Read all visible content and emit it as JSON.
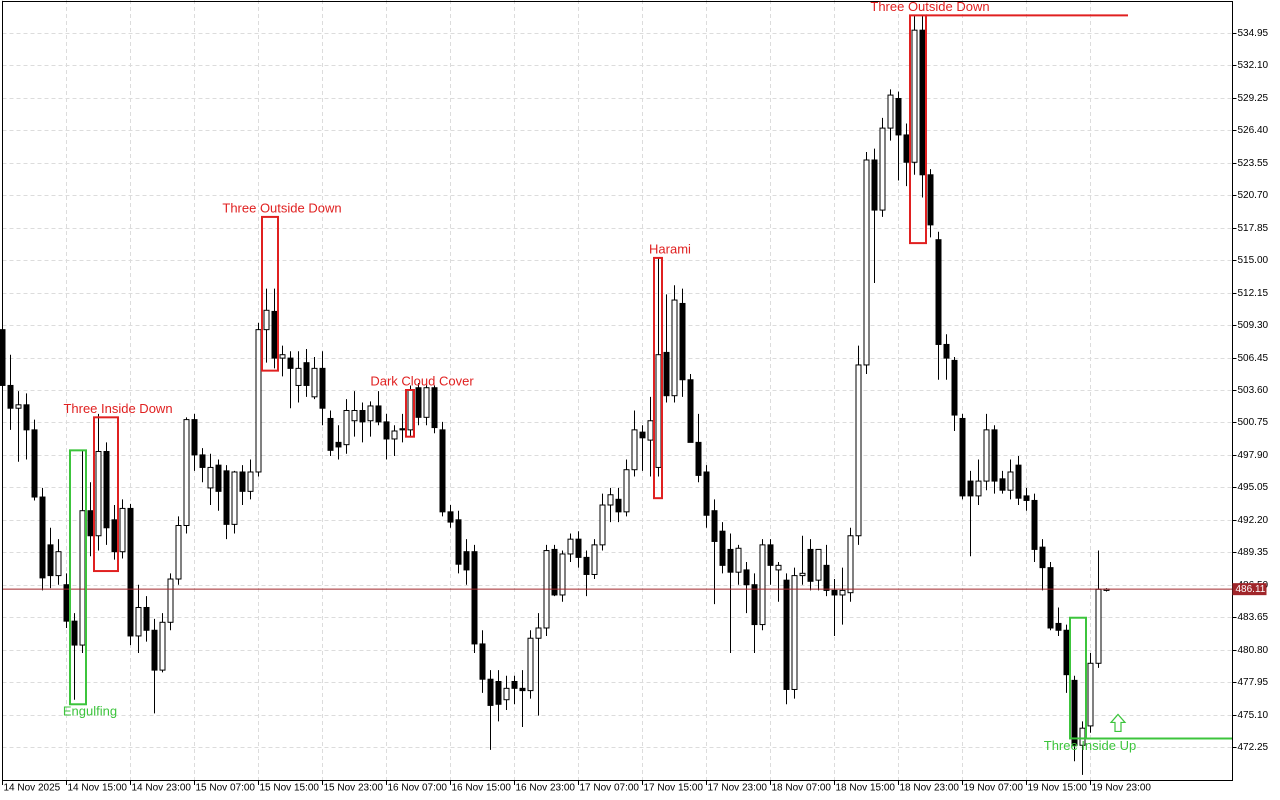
{
  "chart_data": {
    "type": "candlestick",
    "categories": [
      "14 Nov 2025",
      null,
      null,
      null,
      null,
      null,
      null,
      null,
      "14 Nov 15:00",
      null,
      null,
      null,
      null,
      null,
      null,
      null,
      "14 Nov 23:00",
      null,
      null,
      null,
      null,
      null,
      null,
      null,
      "15 Nov 07:00",
      null,
      null,
      null,
      null,
      null,
      null,
      null,
      "15 Nov 15:00",
      null,
      null,
      null,
      null,
      null,
      null,
      null,
      "15 Nov 23:00",
      null,
      null,
      null,
      null,
      null,
      null,
      null,
      "16 Nov 07:00",
      null,
      null,
      null,
      null,
      null,
      null,
      null,
      "16 Nov 15:00",
      null,
      null,
      null,
      null,
      null,
      null,
      null,
      "16 Nov 23:00",
      null,
      null,
      null,
      null,
      null,
      null,
      null,
      "17 Nov 07:00",
      null,
      null,
      null,
      null,
      null,
      null,
      null,
      "17 Nov 15:00",
      null,
      null,
      null,
      null,
      null,
      null,
      null,
      "17 Nov 23:00",
      null,
      null,
      null,
      null,
      null,
      null,
      null,
      "18 Nov 07:00",
      null,
      null,
      null,
      null,
      null,
      null,
      null,
      "18 Nov 15:00",
      null,
      null,
      null,
      null,
      null,
      null,
      null,
      "18 Nov 23:00",
      null,
      null,
      null,
      null,
      null,
      null,
      null,
      "19 Nov 07:00",
      null,
      null,
      null,
      null,
      null,
      null,
      null,
      "19 Nov 15:00",
      null,
      null,
      null,
      null,
      null,
      null,
      null,
      "19 Nov 23:00",
      null,
      null
    ],
    "candles": [
      [
        508.9,
        510.8,
        502.7,
        504.0
      ],
      [
        504.0,
        506.7,
        500.1,
        502.0
      ],
      [
        502.0,
        503.5,
        497.3,
        502.3
      ],
      [
        502.3,
        503.3,
        497.5,
        500.1
      ],
      [
        500.1,
        501.0,
        493.9,
        494.2
      ],
      [
        494.2,
        495.0,
        486.0,
        487.1
      ],
      [
        490.0,
        491.5,
        486.2,
        487.3
      ],
      [
        487.3,
        490.5,
        486.5,
        489.4
      ],
      [
        486.5,
        487.5,
        482.7,
        483.3
      ],
      [
        483.3,
        484.0,
        476.4,
        481.2
      ],
      [
        481.2,
        498.3,
        480.5,
        493.0
      ],
      [
        493.0,
        495.5,
        489.0,
        490.8
      ],
      [
        490.8,
        501.5,
        489.5,
        498.2
      ],
      [
        498.2,
        499.0,
        490.0,
        491.5
      ],
      [
        492.2,
        493.5,
        488.7,
        489.4
      ],
      [
        489.4,
        494.0,
        488.8,
        493.2
      ],
      [
        493.2,
        493.6,
        481.2,
        482.0
      ],
      [
        482.0,
        486.5,
        480.5,
        484.5
      ],
      [
        484.5,
        485.5,
        481.5,
        482.5
      ],
      [
        482.5,
        483.5,
        475.2,
        479.0
      ],
      [
        479.0,
        484.0,
        478.8,
        483.2
      ],
      [
        483.2,
        487.5,
        482.5,
        487.0
      ],
      [
        487.0,
        492.5,
        486.5,
        491.7
      ],
      [
        491.7,
        501.2,
        491.0,
        501.0
      ],
      [
        501.0,
        501.5,
        496.5,
        497.9
      ],
      [
        497.9,
        498.5,
        495.5,
        496.8
      ],
      [
        495.0,
        498.0,
        493.5,
        496.8
      ],
      [
        497.0,
        497.5,
        493.0,
        494.7
      ],
      [
        496.5,
        497.0,
        490.5,
        491.8
      ],
      [
        491.8,
        496.5,
        491.0,
        496.4
      ],
      [
        496.4,
        497.0,
        493.5,
        494.7
      ],
      [
        494.7,
        497.5,
        494.0,
        496.4
      ],
      [
        496.4,
        509.5,
        496.0,
        508.9
      ],
      [
        508.9,
        512.5,
        506.0,
        510.6
      ],
      [
        510.5,
        512.5,
        505.5,
        506.4
      ],
      [
        506.4,
        507.5,
        504.8,
        506.7
      ],
      [
        506.4,
        507.0,
        502.0,
        505.5
      ],
      [
        504.0,
        507.0,
        502.5,
        505.5
      ],
      [
        506.0,
        507.2,
        503.0,
        504.0
      ],
      [
        503.0,
        506.5,
        502.8,
        505.5
      ],
      [
        505.5,
        507.0,
        500.5,
        502.0
      ],
      [
        501.1,
        501.8,
        497.8,
        498.3
      ],
      [
        499.0,
        500.5,
        497.5,
        498.6
      ],
      [
        498.8,
        502.8,
        498.0,
        501.8
      ],
      [
        500.9,
        503.5,
        499.5,
        501.8
      ],
      [
        501.8,
        502.5,
        499.0,
        500.8
      ],
      [
        500.9,
        502.6,
        499.5,
        502.2
      ],
      [
        502.2,
        503.5,
        500.5,
        500.8
      ],
      [
        500.8,
        501.5,
        497.5,
        499.3
      ],
      [
        499.3,
        500.5,
        497.8,
        500.0
      ],
      [
        500.2,
        501.5,
        499.0,
        500.1
      ],
      [
        500.1,
        504.0,
        499.5,
        503.6
      ],
      [
        503.8,
        504.2,
        500.5,
        501.2
      ],
      [
        501.2,
        504.0,
        500.5,
        503.8
      ],
      [
        503.8,
        504.0,
        499.8,
        500.3
      ],
      [
        500.1,
        500.8,
        492.5,
        492.9
      ],
      [
        492.9,
        493.5,
        491.5,
        492.0
      ],
      [
        492.2,
        493.0,
        487.5,
        488.3
      ],
      [
        489.4,
        490.5,
        486.5,
        487.8
      ],
      [
        489.4,
        490.0,
        480.5,
        481.3
      ],
      [
        481.3,
        482.5,
        477.0,
        478.2
      ],
      [
        478.2,
        479.0,
        472.0,
        475.9
      ],
      [
        478.0,
        479.0,
        474.5,
        476.0
      ],
      [
        476.4,
        478.5,
        475.5,
        477.4
      ],
      [
        478.0,
        478.5,
        476.0,
        477.4
      ],
      [
        477.4,
        479.0,
        474.0,
        477.2
      ],
      [
        477.2,
        482.5,
        476.5,
        481.8
      ],
      [
        481.8,
        484.0,
        475.0,
        482.7
      ],
      [
        482.7,
        490.0,
        482.0,
        489.5
      ],
      [
        489.6,
        490.0,
        485.5,
        485.6
      ],
      [
        485.6,
        489.5,
        485.0,
        489.2
      ],
      [
        489.2,
        491.0,
        488.5,
        490.5
      ],
      [
        490.5,
        491.2,
        488.0,
        488.9
      ],
      [
        488.9,
        489.5,
        485.5,
        487.4
      ],
      [
        487.4,
        490.5,
        487.0,
        490.0
      ],
      [
        490.0,
        494.5,
        489.5,
        493.5
      ],
      [
        493.5,
        495.0,
        492.0,
        494.4
      ],
      [
        494.0,
        495.0,
        492.0,
        492.9
      ],
      [
        492.9,
        497.5,
        492.5,
        496.6
      ],
      [
        496.6,
        501.8,
        496.0,
        500.1
      ],
      [
        499.9,
        500.5,
        496.5,
        499.4
      ],
      [
        499.2,
        503.0,
        496.0,
        500.9
      ],
      [
        496.8,
        515.2,
        496.0,
        506.7
      ],
      [
        506.9,
        512.0,
        502.5,
        503.1
      ],
      [
        503.1,
        512.8,
        502.5,
        511.5
      ],
      [
        511.2,
        512.5,
        503.0,
        504.5
      ],
      [
        504.5,
        505.0,
        499.0,
        499.0
      ],
      [
        499.0,
        501.5,
        495.5,
        496.1
      ],
      [
        496.4,
        497.0,
        491.5,
        492.6
      ],
      [
        493.0,
        494.0,
        484.8,
        490.3
      ],
      [
        491.2,
        492.0,
        487.5,
        488.2
      ],
      [
        489.6,
        491.0,
        480.5,
        487.6
      ],
      [
        487.6,
        490.0,
        486.5,
        489.7
      ],
      [
        487.8,
        488.5,
        484.0,
        486.5
      ],
      [
        486.5,
        487.5,
        480.5,
        483.0
      ],
      [
        483.0,
        490.5,
        482.5,
        490.0
      ],
      [
        490.0,
        490.5,
        486.5,
        488.2
      ],
      [
        487.8,
        488.5,
        485.0,
        488.2
      ],
      [
        486.9,
        487.5,
        476.0,
        477.3
      ],
      [
        477.3,
        488.0,
        476.5,
        487.3
      ],
      [
        487.3,
        490.8,
        486.5,
        487.5
      ],
      [
        489.6,
        490.5,
        486.0,
        486.8
      ],
      [
        486.9,
        489.5,
        486.0,
        489.6
      ],
      [
        488.2,
        490.0,
        485.5,
        486.0
      ],
      [
        486.0,
        487.0,
        482.0,
        485.6
      ],
      [
        485.6,
        488.0,
        483.0,
        486.0
      ],
      [
        485.8,
        491.5,
        485.0,
        490.8
      ],
      [
        490.8,
        507.5,
        490.0,
        505.8
      ],
      [
        505.8,
        524.5,
        505.0,
        523.8
      ],
      [
        523.8,
        524.8,
        513.0,
        519.4
      ],
      [
        519.4,
        527.5,
        518.8,
        526.6
      ],
      [
        526.6,
        530.0,
        525.5,
        529.5
      ],
      [
        529.2,
        529.8,
        522.0,
        526.0
      ],
      [
        526.0,
        527.0,
        521.5,
        523.6
      ],
      [
        523.6,
        536.5,
        522.5,
        535.2
      ],
      [
        535.2,
        536.5,
        520.5,
        522.5
      ],
      [
        522.5,
        523.0,
        517.0,
        518.1
      ],
      [
        516.8,
        517.5,
        504.5,
        507.6
      ],
      [
        507.6,
        508.5,
        504.5,
        506.4
      ],
      [
        506.2,
        506.5,
        500.0,
        501.4
      ],
      [
        501.1,
        501.5,
        494.0,
        494.3
      ],
      [
        495.6,
        496.5,
        489.0,
        494.3
      ],
      [
        494.3,
        497.5,
        493.5,
        495.6
      ],
      [
        495.6,
        501.5,
        494.8,
        500.1
      ],
      [
        500.1,
        500.5,
        494.5,
        495.6
      ],
      [
        495.8,
        496.5,
        494.5,
        494.8
      ],
      [
        494.8,
        497.5,
        494.0,
        496.4
      ],
      [
        497.0,
        497.8,
        493.5,
        494.1
      ],
      [
        494.3,
        495.0,
        493.0,
        493.9
      ],
      [
        493.9,
        494.5,
        488.5,
        489.6
      ],
      [
        489.8,
        490.5,
        486.0,
        488.0
      ],
      [
        488.0,
        488.5,
        482.5,
        482.7
      ],
      [
        483.1,
        484.5,
        482.0,
        482.5
      ],
      [
        482.5,
        483.0,
        477.0,
        478.6
      ],
      [
        478.1,
        478.5,
        471.0,
        472.4
      ],
      [
        472.4,
        474.5,
        469.8,
        473.9
      ],
      [
        474.1,
        480.5,
        473.5,
        479.6
      ],
      [
        479.6,
        489.5,
        479.2,
        486.1
      ],
      [
        486.0,
        486.2,
        485.9,
        486.11
      ]
    ],
    "ylim": [
      469.35,
      537.85
    ],
    "yticks": [
      {
        "value": 472.25,
        "label": "472.25"
      },
      {
        "value": 475.1,
        "label": "475.10"
      },
      477.95,
      {
        "value": 480.8,
        "label": "480.80"
      },
      483.65,
      {
        "value": 486.5,
        "label": "486.50"
      },
      489.35,
      {
        "value": 492.2,
        "label": "492.20"
      },
      495.05,
      {
        "value": 497.9,
        "label": "497.90"
      },
      500.75,
      {
        "value": 503.6,
        "label": "503.60"
      },
      506.45,
      {
        "value": 509.3,
        "label": "509.30"
      },
      512.15,
      {
        "value": 515,
        "label": "515.00"
      },
      517.85,
      {
        "value": 520.7,
        "label": "520.70"
      },
      523.55,
      {
        "value": 526.4,
        "label": "526.40"
      },
      529.25,
      {
        "value": 532.1,
        "label": "532.10"
      },
      534.95
    ],
    "grid": true,
    "current_price": 486.11,
    "price_line_color": "#a0262a",
    "bull_color": "#ffffff",
    "bear_color": "#000000",
    "patterns": [
      {
        "label": "Engulfing",
        "color": "#3cc43c",
        "bars": [
          9,
          10
        ],
        "high": 498.3,
        "low": 476.0,
        "position": "below"
      },
      {
        "label": "Three Inside Down",
        "color": "#e02020",
        "bars": [
          12,
          14
        ],
        "high": 501.2,
        "low": 487.7,
        "position": "above"
      },
      {
        "label": "Three Outside Down",
        "color": "#e02020",
        "bars": [
          33,
          34
        ],
        "high": 518.8,
        "low": 505.3,
        "position": "above"
      },
      {
        "label": "Dark Cloud Cover",
        "color": "#e02020",
        "bars": [
          51,
          51
        ],
        "high": 503.6,
        "low": 499.5,
        "position": "above"
      },
      {
        "label": "Harami",
        "color": "#e02020",
        "bars": [
          82,
          82
        ],
        "high": 515.2,
        "low": 494.1,
        "position": "above"
      },
      {
        "label": "Three Outside Down",
        "color": "#e02020",
        "bars": [
          114,
          115
        ],
        "high": 536.5,
        "low": 516.5,
        "position": "above",
        "extend": "high"
      },
      {
        "label": "Three Inside Up",
        "color": "#3cc43c",
        "bars": [
          134,
          135
        ],
        "high": 483.6,
        "low": 473.0,
        "position": "below",
        "extend": "low",
        "arrow": "up"
      }
    ]
  }
}
